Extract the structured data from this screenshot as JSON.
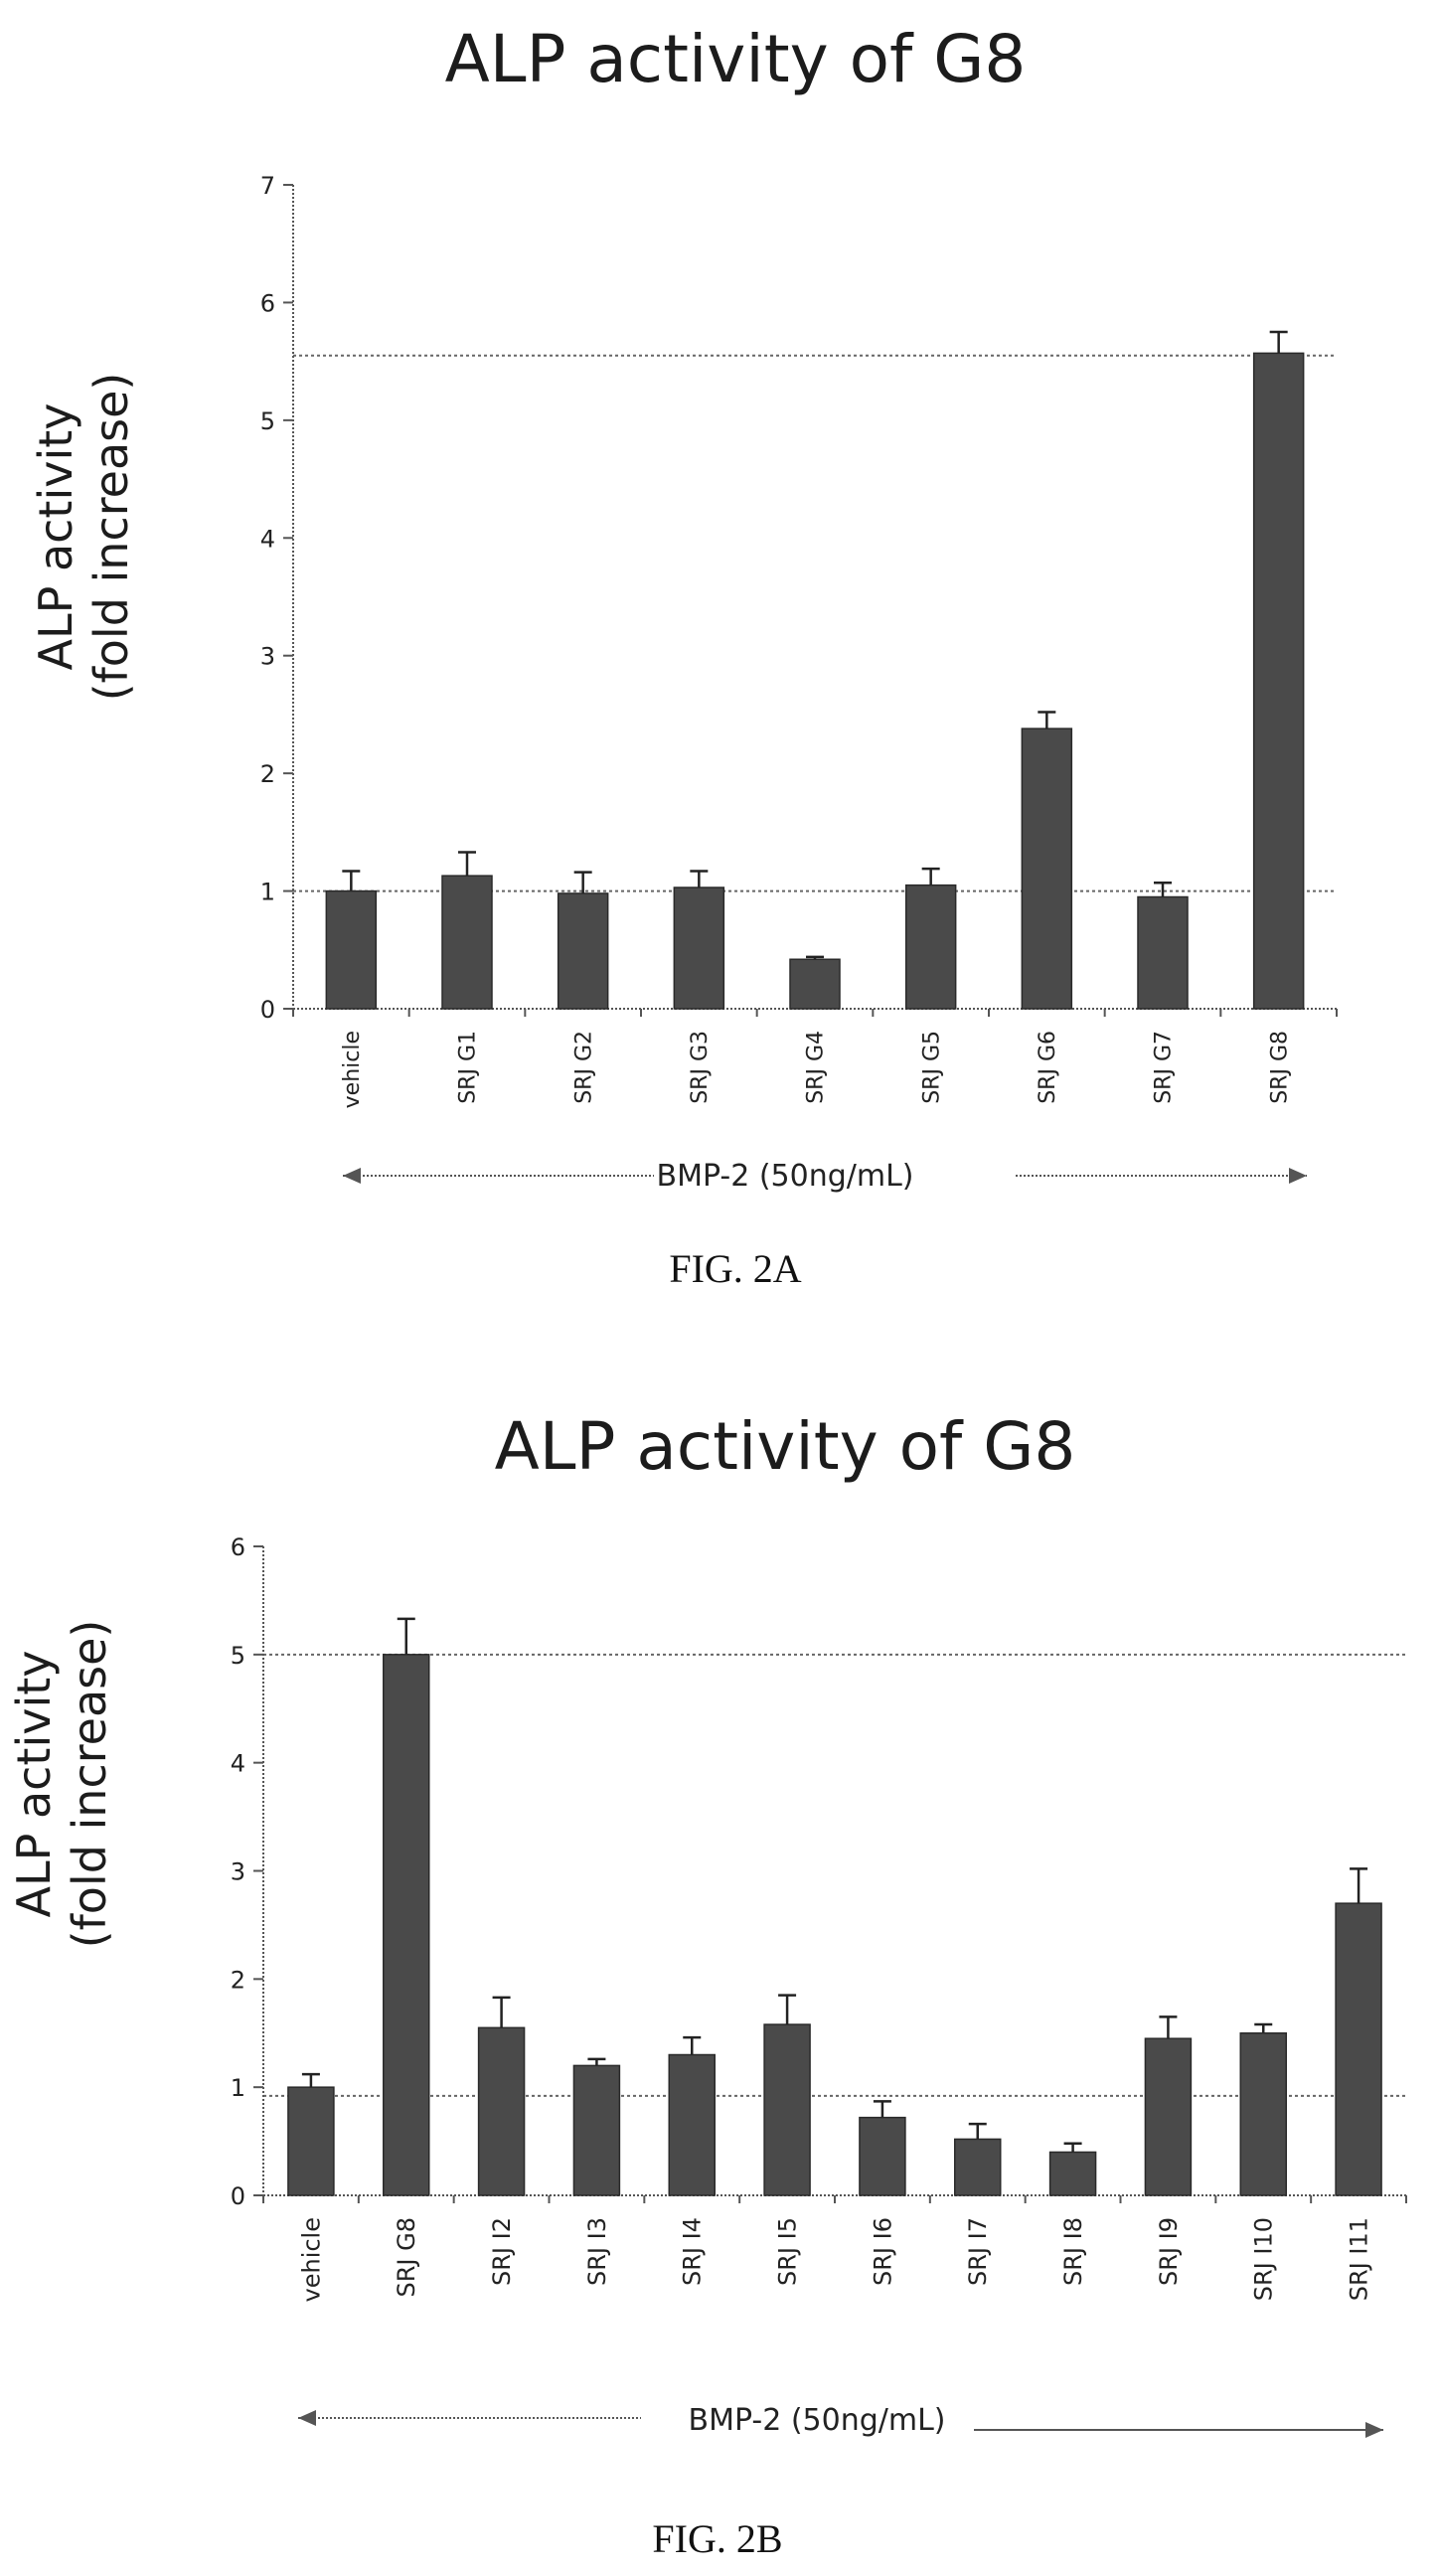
{
  "bar_fill": "#4a4a4a",
  "axis_color": "#555555",
  "chart_data": [
    {
      "type": "bar",
      "title": "ALP activity of G8",
      "ylabel_line1": "ALP activity",
      "ylabel_line2": "(fold increase)",
      "xlabel": "",
      "categories": [
        "vehicle",
        "SRJ G1",
        "SRJ G2",
        "SRJ G3",
        "SRJ G4",
        "SRJ G5",
        "SRJ G6",
        "SRJ G7",
        "SRJ G8"
      ],
      "values": [
        1.0,
        1.13,
        0.98,
        1.03,
        0.42,
        1.05,
        2.38,
        0.95,
        5.57
      ],
      "errors": [
        0.17,
        0.2,
        0.18,
        0.14,
        0.02,
        0.14,
        0.14,
        0.12,
        0.18
      ],
      "ylim": [
        0,
        7
      ],
      "yticks": [
        0,
        1,
        2,
        3,
        4,
        5,
        6,
        7
      ],
      "reference_lines": [
        1,
        5.55
      ],
      "annotation": "BMP-2 (50ng/mL)",
      "caption": "FIG. 2A",
      "grid": false,
      "legend": "none"
    },
    {
      "type": "bar",
      "title": "ALP activity of G8",
      "ylabel_line1": "ALP activity",
      "ylabel_line2": "(fold increase)",
      "xlabel": "",
      "categories": [
        "vehicle",
        "SRJ G8",
        "SRJ I2",
        "SRJ I3",
        "SRJ I4",
        "SRJ I5",
        "SRJ I6",
        "SRJ I7",
        "SRJ I8",
        "SRJ I9",
        "SRJ I10",
        "SRJ I11"
      ],
      "values": [
        1.0,
        5.0,
        1.55,
        1.2,
        1.3,
        1.58,
        0.72,
        0.52,
        0.4,
        1.45,
        1.5,
        2.7
      ],
      "errors": [
        0.12,
        0.33,
        0.28,
        0.06,
        0.16,
        0.27,
        0.15,
        0.14,
        0.08,
        0.2,
        0.08,
        0.32
      ],
      "ylim": [
        0,
        6
      ],
      "yticks": [
        0,
        1,
        2,
        3,
        4,
        5,
        6
      ],
      "reference_lines": [
        0.92,
        5
      ],
      "annotation": "BMP-2 (50ng/mL)",
      "caption": "FIG. 2B",
      "grid": false,
      "legend": "none"
    }
  ]
}
